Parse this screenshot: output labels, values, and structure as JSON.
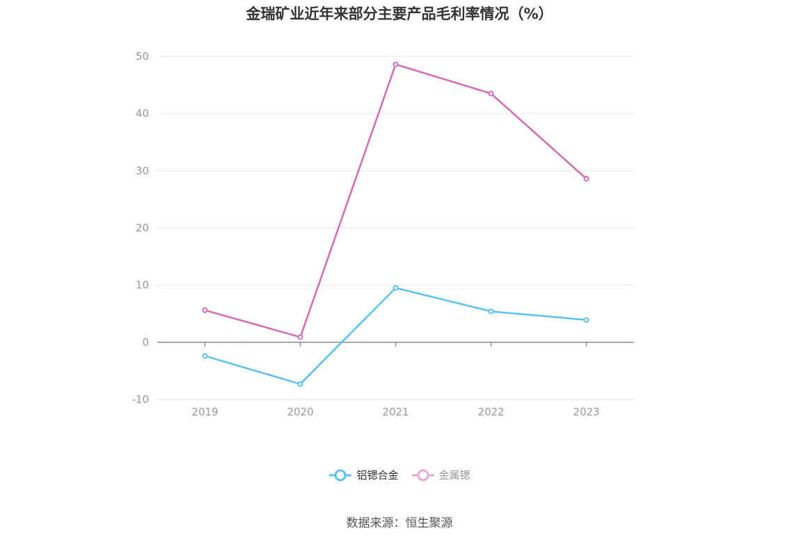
{
  "chart_data": {
    "type": "line",
    "title": "金瑞矿业近年来部分主要产品毛利率情况（%）",
    "categories": [
      "2019",
      "2020",
      "2021",
      "2022",
      "2023"
    ],
    "series": [
      {
        "name": "铝锶合金",
        "color": "#5bc0f0",
        "values": [
          -2.4,
          -7.3,
          9.5,
          5.4,
          3.9
        ]
      },
      {
        "name": "金属锶",
        "color": "#d16bb5",
        "values": [
          5.6,
          0.9,
          48.6,
          43.5,
          28.6
        ]
      }
    ],
    "yticks": [
      "-10",
      "0",
      "10",
      "20",
      "30",
      "40",
      "50"
    ],
    "ylim": [
      -10,
      50
    ],
    "grid": true,
    "legend_position": "bottom-center"
  },
  "legend": {
    "item0": "铝锶合金",
    "item1": "金属锶",
    "item1_text_color": "#999999"
  },
  "source": "数据来源：恒生聚源"
}
